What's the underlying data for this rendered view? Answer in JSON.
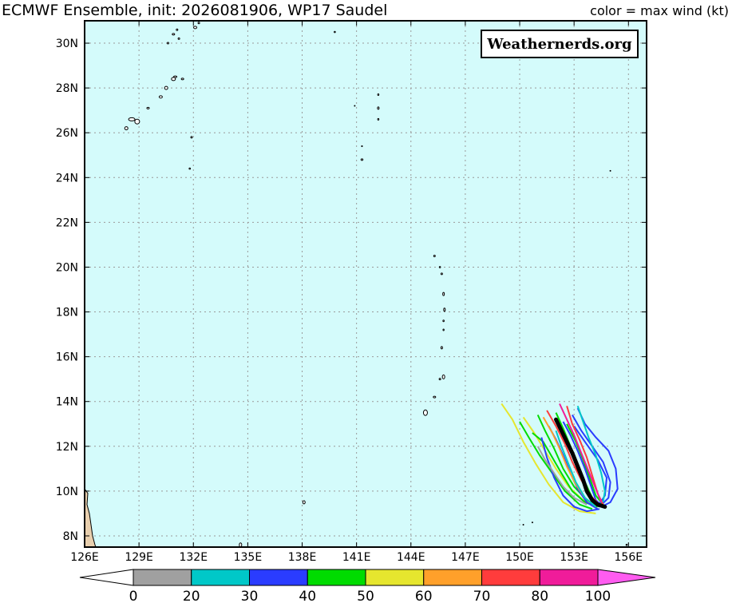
{
  "header": {
    "title": "ECMWF Ensemble, init: 2026081906, WP17 Saudel",
    "legend_caption": "color = max wind (kt)",
    "watermark": "Weathernerds.org"
  },
  "map": {
    "lon_range": [
      126,
      157
    ],
    "lat_range": [
      7.5,
      31
    ],
    "lon_ticks": [
      "126E",
      "129E",
      "132E",
      "135E",
      "138E",
      "141E",
      "144E",
      "147E",
      "150E",
      "153E",
      "156E"
    ],
    "lon_tick_values": [
      126,
      129,
      132,
      135,
      138,
      141,
      144,
      147,
      150,
      153,
      156
    ],
    "lat_ticks": [
      "8N",
      "10N",
      "12N",
      "14N",
      "16N",
      "18N",
      "20N",
      "22N",
      "24N",
      "26N",
      "28N",
      "30N"
    ],
    "lat_tick_values": [
      8,
      10,
      12,
      14,
      16,
      18,
      20,
      22,
      24,
      26,
      28,
      30
    ],
    "ocean_color": "#d4fbfb",
    "land_color": "#e8cfae",
    "grid": true
  },
  "ensemble_tracks": [
    {
      "color": "#e6e62e",
      "points": [
        [
          149.0,
          13.9
        ],
        [
          149.6,
          13.2
        ],
        [
          150.2,
          12.2
        ],
        [
          150.9,
          11.2
        ],
        [
          151.6,
          10.3
        ],
        [
          152.4,
          9.5
        ],
        [
          153.3,
          9.1
        ],
        [
          154.2,
          9.0
        ]
      ]
    },
    {
      "color": "#e6e62e",
      "points": [
        [
          150.2,
          13.3
        ],
        [
          150.8,
          12.6
        ],
        [
          151.4,
          11.8
        ],
        [
          152.0,
          11.0
        ],
        [
          152.7,
          10.2
        ],
        [
          153.5,
          9.6
        ],
        [
          154.3,
          9.3
        ]
      ]
    },
    {
      "color": "#00dc00",
      "points": [
        [
          150.0,
          13.1
        ],
        [
          150.5,
          12.4
        ],
        [
          151.1,
          11.6
        ],
        [
          151.8,
          10.8
        ],
        [
          152.5,
          10.0
        ],
        [
          153.3,
          9.4
        ],
        [
          154.0,
          9.2
        ]
      ]
    },
    {
      "color": "#00dc00",
      "points": [
        [
          151.0,
          13.4
        ],
        [
          151.4,
          12.7
        ],
        [
          151.9,
          11.9
        ],
        [
          152.4,
          11.0
        ],
        [
          153.0,
          10.2
        ],
        [
          153.7,
          9.6
        ],
        [
          154.4,
          9.3
        ]
      ]
    },
    {
      "color": "#00dc00",
      "points": [
        [
          152.0,
          13.5
        ],
        [
          152.4,
          12.8
        ],
        [
          152.8,
          12.0
        ],
        [
          153.2,
          11.2
        ],
        [
          153.6,
          10.4
        ],
        [
          154.0,
          9.7
        ],
        [
          154.4,
          9.3
        ]
      ]
    },
    {
      "color": "#00dc00",
      "points": [
        [
          150.7,
          12.6
        ],
        [
          151.3,
          12.2
        ],
        [
          151.8,
          11.5
        ],
        [
          152.3,
          10.8
        ],
        [
          152.9,
          10.0
        ],
        [
          153.6,
          9.5
        ],
        [
          154.3,
          9.3
        ]
      ]
    },
    {
      "color": "#00dc00",
      "points": [
        [
          152.6,
          13.0
        ],
        [
          153.1,
          12.2
        ],
        [
          153.5,
          11.4
        ],
        [
          153.9,
          10.5
        ],
        [
          154.2,
          9.8
        ],
        [
          154.6,
          9.4
        ]
      ]
    },
    {
      "color": "#2a3cff",
      "points": [
        [
          153.2,
          13.7
        ],
        [
          153.6,
          13.0
        ],
        [
          154.2,
          12.4
        ],
        [
          154.9,
          11.8
        ],
        [
          155.3,
          11.0
        ],
        [
          155.4,
          10.1
        ],
        [
          155.0,
          9.5
        ],
        [
          154.5,
          9.3
        ]
      ]
    },
    {
      "color": "#2a3cff",
      "points": [
        [
          152.9,
          13.4
        ],
        [
          153.4,
          12.7
        ],
        [
          154.0,
          12.0
        ],
        [
          154.6,
          11.3
        ],
        [
          155.0,
          10.4
        ],
        [
          154.9,
          9.7
        ],
        [
          154.4,
          9.3
        ]
      ]
    },
    {
      "color": "#2a3cff",
      "points": [
        [
          152.4,
          13.1
        ],
        [
          152.8,
          12.5
        ],
        [
          153.2,
          11.8
        ],
        [
          153.6,
          11.0
        ],
        [
          153.9,
          10.3
        ],
        [
          154.2,
          9.6
        ],
        [
          154.6,
          9.3
        ]
      ]
    },
    {
      "color": "#2a3cff",
      "points": [
        [
          151.6,
          12.9
        ],
        [
          152.0,
          12.3
        ],
        [
          152.4,
          11.6
        ],
        [
          152.8,
          10.8
        ],
        [
          153.2,
          10.1
        ],
        [
          153.7,
          9.5
        ],
        [
          154.3,
          9.2
        ]
      ]
    },
    {
      "color": "#2a3cff",
      "points": [
        [
          151.2,
          12.4
        ],
        [
          151.5,
          11.5
        ],
        [
          151.9,
          10.6
        ],
        [
          152.4,
          9.8
        ],
        [
          153.0,
          9.3
        ],
        [
          153.7,
          9.1
        ],
        [
          154.4,
          9.2
        ]
      ]
    },
    {
      "color": "#2a3cff",
      "points": [
        [
          153.0,
          12.9
        ],
        [
          153.6,
          12.2
        ],
        [
          154.3,
          11.4
        ],
        [
          154.8,
          10.6
        ],
        [
          154.7,
          9.8
        ],
        [
          154.3,
          9.3
        ]
      ]
    },
    {
      "color": "#ffa02a",
      "points": [
        [
          151.3,
          13.3
        ],
        [
          151.8,
          12.6
        ],
        [
          152.2,
          11.9
        ],
        [
          152.6,
          11.1
        ],
        [
          153.1,
          10.3
        ],
        [
          153.6,
          9.7
        ],
        [
          154.2,
          9.3
        ]
      ]
    },
    {
      "color": "#ff3c3c",
      "points": [
        [
          151.5,
          13.6
        ],
        [
          152.0,
          12.9
        ],
        [
          152.5,
          12.1
        ],
        [
          152.9,
          11.3
        ],
        [
          153.4,
          10.5
        ],
        [
          153.9,
          9.8
        ],
        [
          154.4,
          9.4
        ]
      ]
    },
    {
      "color": "#ff3c3c",
      "points": [
        [
          152.6,
          13.8
        ],
        [
          152.9,
          13.0
        ],
        [
          153.3,
          12.3
        ],
        [
          153.7,
          11.5
        ],
        [
          154.0,
          10.7
        ],
        [
          154.3,
          9.9
        ],
        [
          154.6,
          9.4
        ]
      ]
    },
    {
      "color": "#f01c9a",
      "points": [
        [
          152.2,
          13.9
        ],
        [
          152.6,
          13.2
        ],
        [
          153.0,
          12.5
        ],
        [
          153.4,
          11.7
        ],
        [
          153.8,
          10.9
        ],
        [
          154.2,
          10.1
        ],
        [
          154.5,
          9.5
        ]
      ]
    },
    {
      "color": "#00c8c8",
      "points": [
        [
          153.2,
          13.8
        ],
        [
          153.5,
          13.1
        ],
        [
          153.8,
          12.4
        ],
        [
          154.2,
          11.6
        ],
        [
          154.5,
          10.8
        ],
        [
          154.7,
          10.0
        ],
        [
          154.6,
          9.5
        ]
      ]
    },
    {
      "color": "#00c8c8",
      "points": [
        [
          152.0,
          12.7
        ],
        [
          152.3,
          12.0
        ],
        [
          152.7,
          11.2
        ],
        [
          153.1,
          10.4
        ],
        [
          153.6,
          9.7
        ],
        [
          154.2,
          9.3
        ]
      ]
    },
    {
      "color": "#a0a0a0",
      "points": [
        [
          151.0,
          12.0
        ],
        [
          151.4,
          11.4
        ],
        [
          151.9,
          10.8
        ],
        [
          152.4,
          10.2
        ],
        [
          153.0,
          9.7
        ],
        [
          153.7,
          9.4
        ]
      ]
    }
  ],
  "mean_track": {
    "color": "#000000",
    "points": [
      [
        152.0,
        13.2
      ],
      [
        152.3,
        12.7
      ],
      [
        152.6,
        12.2
      ],
      [
        152.9,
        11.7
      ],
      [
        153.2,
        11.1
      ],
      [
        153.5,
        10.5
      ],
      [
        153.7,
        10.0
      ],
      [
        154.0,
        9.6
      ],
      [
        154.3,
        9.4
      ],
      [
        154.7,
        9.3
      ]
    ]
  },
  "colorbar": {
    "labels": [
      "0",
      "20",
      "30",
      "40",
      "50",
      "60",
      "70",
      "80",
      "100"
    ],
    "colors": [
      "#a0a0a0",
      "#00c8c8",
      "#2a3cff",
      "#00dc00",
      "#e6e62e",
      "#ffa02a",
      "#ff3c3c",
      "#f01c9a"
    ],
    "overflow_color": "#ff5cf0",
    "underflow_color": "#ffffff"
  }
}
